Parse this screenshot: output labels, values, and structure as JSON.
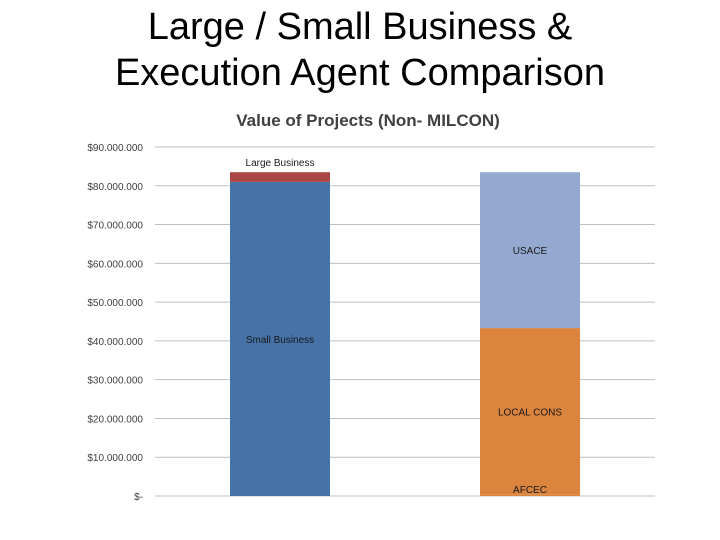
{
  "slide": {
    "title_line1": "Large / Small Business &",
    "title_line2": "Execution Agent Comparison"
  },
  "chart_data": {
    "type": "bar",
    "stacked": true,
    "title": "Value of Projects (Non- MILCON)",
    "xlabel": "",
    "ylabel": "",
    "ylim": [
      0,
      90000000
    ],
    "y_tick_values": [
      0,
      10000000,
      20000000,
      30000000,
      40000000,
      50000000,
      60000000,
      70000000,
      80000000,
      90000000
    ],
    "y_tick_labels": [
      "$-",
      "$10.000.000",
      "$20.000.000",
      "$30.000.000",
      "$40.000.000",
      "$50.000.000",
      "$60.000.000",
      "$70.000.000",
      "$80.000.000",
      "$90.000.000"
    ],
    "grid": true,
    "legend": "none",
    "bars": [
      {
        "segments": [
          {
            "name": "Small Business",
            "value": 81000000,
            "color": "#4572a7"
          },
          {
            "name": "Large Business",
            "value": 2500000,
            "color": "#aa4643"
          }
        ]
      },
      {
        "segments": [
          {
            "name": "AFCEC",
            "value": 300000,
            "color": "#db843d"
          },
          {
            "name": "LOCAL CONS",
            "value": 43000000,
            "color": "#db843d"
          },
          {
            "name": "USACE",
            "value": 40200000,
            "color": "#93a9cf"
          }
        ]
      }
    ]
  }
}
